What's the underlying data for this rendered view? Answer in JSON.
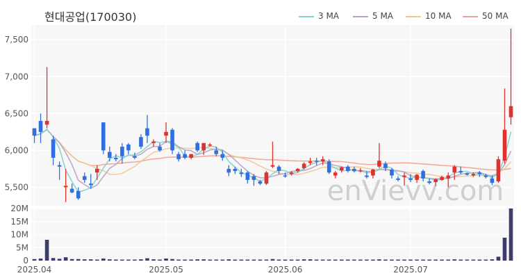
{
  "chart_data": {
    "type": "candlestick",
    "title": "현대공업(170030)",
    "watermark": "enVievv.com",
    "legend": [
      {
        "name": "3 MA",
        "color": "#7fd3c8"
      },
      {
        "name": "5 MA",
        "color": "#b8a0c8"
      },
      {
        "name": "10 MA",
        "color": "#f0c890"
      },
      {
        "name": "50 MA",
        "color": "#f4a090"
      }
    ],
    "up_color": "#e03030",
    "down_color": "#2f6fe0",
    "price_axis": {
      "min": 5250,
      "max": 7700,
      "ticks": [
        5500,
        6000,
        6500,
        7000,
        7500
      ],
      "tick_labels": [
        "5,500",
        "6,000",
        "6,500",
        "7,000",
        "7,500"
      ]
    },
    "volume_axis": {
      "min": 0,
      "max": 20,
      "ticks": [
        0,
        5,
        10,
        15,
        20
      ],
      "tick_labels": [
        "0",
        "5M",
        "10M",
        "15M",
        "20M"
      ]
    },
    "x_labels": [
      {
        "label": "2025.04",
        "index": 0
      },
      {
        "label": "2025.05",
        "index": 21
      },
      {
        "label": "2025.06",
        "index": 40
      },
      {
        "label": "2025.07",
        "index": 60
      }
    ],
    "ohlc": [
      [
        6300,
        6300,
        6100,
        6200
      ],
      [
        6400,
        6500,
        6100,
        6250
      ],
      [
        6350,
        7130,
        6300,
        6400
      ],
      [
        6150,
        6200,
        5800,
        5900
      ],
      [
        5800,
        5850,
        5600,
        5780
      ],
      [
        5500,
        5750,
        5300,
        5520
      ],
      [
        5480,
        5550,
        5420,
        5430
      ],
      [
        5450,
        5500,
        5330,
        5350
      ],
      [
        5650,
        5700,
        5560,
        5600
      ],
      [
        5550,
        5680,
        5480,
        5530
      ],
      [
        5700,
        5800,
        5600,
        5750
      ],
      [
        6380,
        6380,
        5950,
        6000
      ],
      [
        5980,
        6050,
        5850,
        5900
      ],
      [
        5900,
        5950,
        5850,
        5880
      ],
      [
        6050,
        6100,
        5820,
        5920
      ],
      [
        6080,
        6100,
        5950,
        6000
      ],
      [
        5920,
        5970,
        5880,
        5900
      ],
      [
        6180,
        6220,
        6020,
        6050
      ],
      [
        6300,
        6480,
        6100,
        6200
      ],
      [
        6100,
        6150,
        6050,
        6120
      ],
      [
        6050,
        6100,
        5980,
        6000
      ],
      [
        6200,
        6380,
        6100,
        6250
      ],
      [
        6280,
        6300,
        5950,
        6000
      ],
      [
        5950,
        5980,
        5850,
        5880
      ],
      [
        5950,
        6000,
        5880,
        5900
      ],
      [
        5900,
        5950,
        5880,
        5950
      ],
      [
        6100,
        6120,
        5980,
        6000
      ],
      [
        6000,
        6100,
        5940,
        6100
      ],
      [
        6080,
        6100,
        6050,
        6080
      ],
      [
        6000,
        6050,
        5920,
        5950
      ],
      [
        5950,
        6000,
        5860,
        5900
      ],
      [
        5750,
        5800,
        5650,
        5700
      ],
      [
        5750,
        5780,
        5680,
        5720
      ],
      [
        5700,
        5750,
        5640,
        5680
      ],
      [
        5700,
        5720,
        5550,
        5600
      ],
      [
        5650,
        5680,
        5520,
        5600
      ],
      [
        5580,
        5600,
        5530,
        5550
      ],
      [
        5550,
        5720,
        5530,
        5700
      ],
      [
        5780,
        6120,
        5760,
        5800
      ],
      [
        5780,
        5800,
        5680,
        5720
      ],
      [
        5660,
        5700,
        5630,
        5650
      ],
      [
        5680,
        5720,
        5660,
        5700
      ],
      [
        5720,
        5760,
        5700,
        5750
      ],
      [
        5760,
        5840,
        5740,
        5820
      ],
      [
        5830,
        5900,
        5800,
        5850
      ],
      [
        5860,
        5900,
        5800,
        5850
      ],
      [
        5850,
        5920,
        5800,
        5880
      ],
      [
        5850,
        5880,
        5680,
        5700
      ],
      [
        5660,
        5720,
        5620,
        5700
      ],
      [
        5730,
        5780,
        5700,
        5770
      ],
      [
        5780,
        5800,
        5700,
        5720
      ],
      [
        5750,
        5780,
        5700,
        5720
      ],
      [
        5720,
        5760,
        5700,
        5730
      ],
      [
        5660,
        5720,
        5620,
        5640
      ],
      [
        5660,
        5750,
        5620,
        5740
      ],
      [
        5780,
        6100,
        5760,
        5860
      ],
      [
        5820,
        5850,
        5720,
        5760
      ],
      [
        5740,
        5760,
        5620,
        5660
      ],
      [
        5620,
        5650,
        5580,
        5600
      ],
      [
        5640,
        5700,
        5520,
        5660
      ],
      [
        5620,
        5680,
        5570,
        5600
      ],
      [
        5600,
        5680,
        5560,
        5670
      ],
      [
        5720,
        5740,
        5580,
        5620
      ],
      [
        5580,
        5620,
        5540,
        5560
      ],
      [
        5570,
        5620,
        5520,
        5610
      ],
      [
        5600,
        5660,
        5590,
        5640
      ],
      [
        5620,
        5700,
        5500,
        5660
      ],
      [
        5700,
        5800,
        5600,
        5780
      ],
      [
        5720,
        5780,
        5680,
        5700
      ],
      [
        5690,
        5700,
        5660,
        5670
      ],
      [
        5660,
        5700,
        5640,
        5680
      ],
      [
        5700,
        5720,
        5640,
        5680
      ],
      [
        5660,
        5680,
        5620,
        5640
      ],
      [
        5620,
        5660,
        5530,
        5560
      ],
      [
        5580,
        5920,
        5560,
        5880
      ],
      [
        5860,
        6840,
        5820,
        6280
      ],
      [
        6450,
        7650,
        6350,
        6600
      ]
    ],
    "volume": [
      0.6,
      0.8,
      8.0,
      1.0,
      0.7,
      1.3,
      0.6,
      0.6,
      0.5,
      0.5,
      0.4,
      0.8,
      0.5,
      0.4,
      0.4,
      0.4,
      0.4,
      0.5,
      0.9,
      0.5,
      0.4,
      0.8,
      0.6,
      0.4,
      0.4,
      0.4,
      0.5,
      0.5,
      0.4,
      0.4,
      0.4,
      0.5,
      0.4,
      0.4,
      0.4,
      0.4,
      0.4,
      0.4,
      0.6,
      0.4,
      0.4,
      0.4,
      0.4,
      0.5,
      0.5,
      0.4,
      0.4,
      0.4,
      0.4,
      0.4,
      0.4,
      0.4,
      0.4,
      0.4,
      0.4,
      0.5,
      0.4,
      0.4,
      0.4,
      0.4,
      0.4,
      0.4,
      0.4,
      0.4,
      0.4,
      0.4,
      0.4,
      0.5,
      0.4,
      0.4,
      0.4,
      0.4,
      0.4,
      0.5,
      1.5,
      8.8,
      20.0
    ],
    "grid": true
  }
}
